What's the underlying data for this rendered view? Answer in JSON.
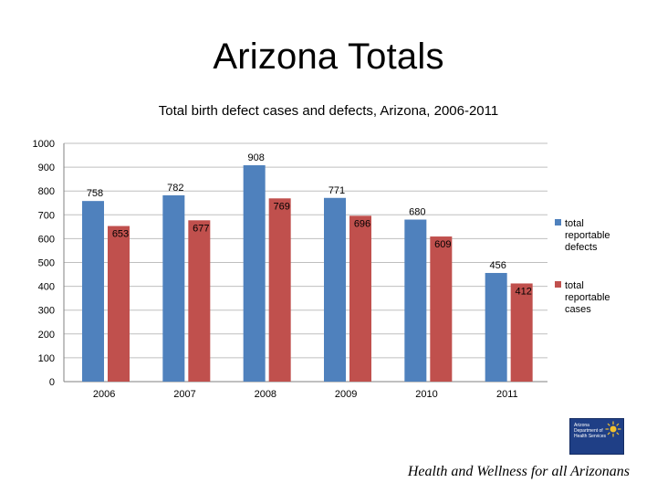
{
  "slide": {
    "title": "Arizona Totals",
    "footer": "Health and Wellness for all Arizonans"
  },
  "logo": {
    "lines": [
      "Arizona",
      "Department of",
      "Health Services"
    ],
    "icon": "sun-icon"
  },
  "colors": {
    "defects": "#4f81bd",
    "cases": "#c0504d",
    "grid": "#bfbfbf",
    "text": "#000000",
    "logo_bg": "#1f3f86",
    "logo_sun": "#f2c12e"
  },
  "chart_data": {
    "type": "bar",
    "title": "Total birth defect cases and defects, Arizona, 2006-2011",
    "xlabel": "",
    "ylabel": "",
    "categories": [
      "2006",
      "2007",
      "2008",
      "2009",
      "2010",
      "2011"
    ],
    "series": [
      {
        "name": "total reportable defects",
        "values": [
          758,
          782,
          908,
          771,
          680,
          456
        ]
      },
      {
        "name": "total reportable cases",
        "values": [
          653,
          677,
          769,
          696,
          609,
          412
        ]
      }
    ],
    "ylim": [
      0,
      1000
    ],
    "yticks": [
      0,
      100,
      200,
      300,
      400,
      500,
      600,
      700,
      800,
      900,
      1000
    ],
    "grid": true,
    "legend": "right"
  }
}
